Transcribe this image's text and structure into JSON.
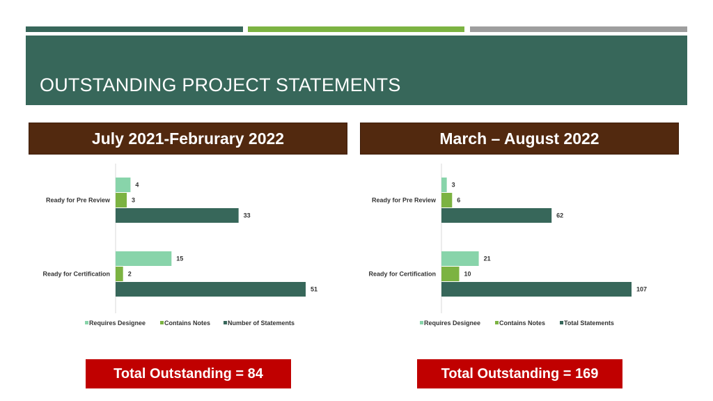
{
  "title": "OUTSTANDING PROJECT STATEMENTS",
  "colors": {
    "stripe_dark": "#37675a",
    "stripe_green": "#7cb342",
    "stripe_gray": "#9e9e9e",
    "banner": "#37675a",
    "period_bg": "#52290f",
    "total_bg": "#c00000"
  },
  "chart_data": [
    {
      "type": "bar",
      "orientation": "horizontal",
      "title": "July 2021-Februrary 2022",
      "categories": [
        "Ready for Pre Review",
        "Ready for Certification"
      ],
      "series": [
        {
          "name": "Requires Designee",
          "color": "#88d4aa",
          "values": [
            4,
            15
          ]
        },
        {
          "name": "Contains Notes",
          "color": "#7cb342",
          "values": [
            3,
            2
          ]
        },
        {
          "name": "Number of Statements",
          "color": "#37675a",
          "values": [
            33,
            51
          ]
        }
      ],
      "xlim": [
        0,
        51
      ],
      "grid": false,
      "legend": "bottom",
      "total_label": "Total Outstanding = 84"
    },
    {
      "type": "bar",
      "orientation": "horizontal",
      "title": "March – August 2022",
      "categories": [
        "Ready for Pre Review",
        "Ready for Certification"
      ],
      "series": [
        {
          "name": "Requires Designee",
          "color": "#88d4aa",
          "values": [
            3,
            21
          ]
        },
        {
          "name": "Contains Notes",
          "color": "#7cb342",
          "values": [
            6,
            10
          ]
        },
        {
          "name": "Total Statements",
          "color": "#37675a",
          "values": [
            62,
            107
          ]
        }
      ],
      "xlim": [
        0,
        107
      ],
      "grid": false,
      "legend": "bottom",
      "total_label": "Total Outstanding = 169"
    }
  ]
}
